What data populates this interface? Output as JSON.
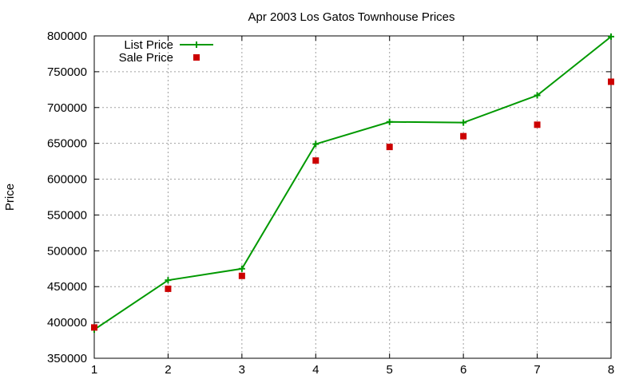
{
  "chart_data": {
    "type": "line",
    "title": "Apr 2003 Los Gatos Townhouse Prices",
    "xlabel": "",
    "ylabel": "Price",
    "x": [
      1,
      2,
      3,
      4,
      5,
      6,
      7,
      8
    ],
    "xlim": [
      1,
      8
    ],
    "ylim": [
      350000,
      800000
    ],
    "yticks": [
      "350000",
      "400000",
      "450000",
      "500000",
      "550000",
      "600000",
      "650000",
      "700000",
      "750000",
      "800000"
    ],
    "xticks": [
      "1",
      "2",
      "3",
      "4",
      "5",
      "6",
      "7",
      "8"
    ],
    "grid": true,
    "legend_position": "top-left",
    "series": [
      {
        "name": "List Price",
        "style": "linespoints",
        "marker": "plus",
        "color": "#009900",
        "values": [
          390000,
          459000,
          475000,
          649000,
          680000,
          679000,
          717000,
          799000
        ]
      },
      {
        "name": "Sale Price",
        "style": "points",
        "marker": "square",
        "color": "#cc0000",
        "values": [
          393000,
          447000,
          465000,
          626000,
          645000,
          660000,
          676000,
          736000
        ]
      }
    ]
  }
}
